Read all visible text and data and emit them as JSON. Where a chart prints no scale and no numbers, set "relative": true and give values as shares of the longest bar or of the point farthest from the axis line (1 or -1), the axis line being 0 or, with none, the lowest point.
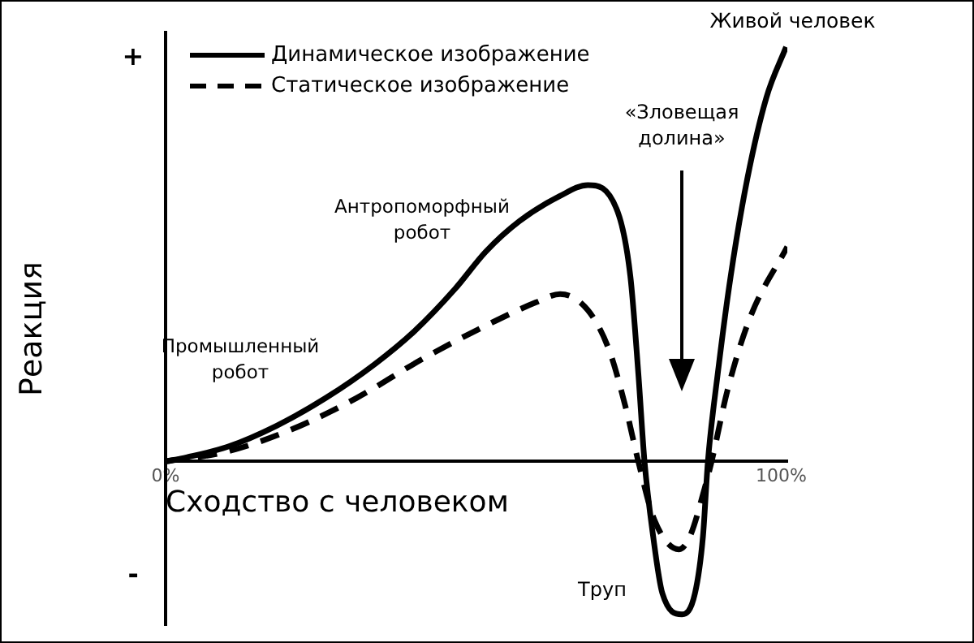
{
  "chart_data": {
    "type": "line",
    "xlabel": "Сходство с человеком",
    "ylabel": "Реакция",
    "relative": true,
    "xlim": [
      0,
      101
    ],
    "xticks": [
      {
        "value": 0,
        "label": "0%"
      },
      {
        "value": 100,
        "label": "100%"
      }
    ],
    "legend": "top left",
    "grid": false,
    "series": [
      {
        "name": "Динамическое изображение",
        "color": "#000000",
        "line_style": "solid",
        "x": [
          0,
          3.4,
          10,
          18,
          26,
          34,
          40.4,
          47,
          52,
          57.5,
          64,
          68.6,
          73.4,
          75.5,
          76.8,
          77.8,
          79.2,
          80.7,
          83.9,
          86,
          87.3,
          88.1,
          89.7,
          91.8,
          94.5,
          97.6,
          100.8
        ],
        "values": [
          0,
          0.01,
          0.035,
          0.086,
          0.153,
          0.235,
          0.314,
          0.416,
          0.506,
          0.58,
          0.64,
          0.667,
          0.604,
          0.447,
          0.212,
          0,
          -0.18,
          -0.318,
          -0.369,
          -0.318,
          -0.18,
          0,
          0.212,
          0.447,
          0.682,
          0.878,
          1
        ]
      },
      {
        "name": "Статическое изображение",
        "color": "#000000",
        "line_style": "dashed",
        "x": [
          0,
          10,
          20.6,
          31,
          41.7,
          52.2,
          60.2,
          64.1,
          68.6,
          72,
          74.7,
          76.8,
          79.4,
          83.4,
          85.2,
          87.6,
          88.7,
          91.3,
          95,
          101
        ],
        "values": [
          0,
          0.024,
          0.078,
          0.153,
          0.247,
          0.329,
          0.384,
          0.404,
          0.365,
          0.271,
          0.133,
          0,
          -0.141,
          -0.212,
          -0.18,
          -0.063,
          0,
          0.173,
          0.349,
          0.518
        ]
      }
    ],
    "annotations": [
      "+",
      "-",
      "Промышленный робот",
      "Антропоморфный робот",
      "«Зловещая долина»",
      "Труп",
      {
        "text": "Живой человек",
        "x": 100.8,
        "y": 1
      }
    ]
  }
}
